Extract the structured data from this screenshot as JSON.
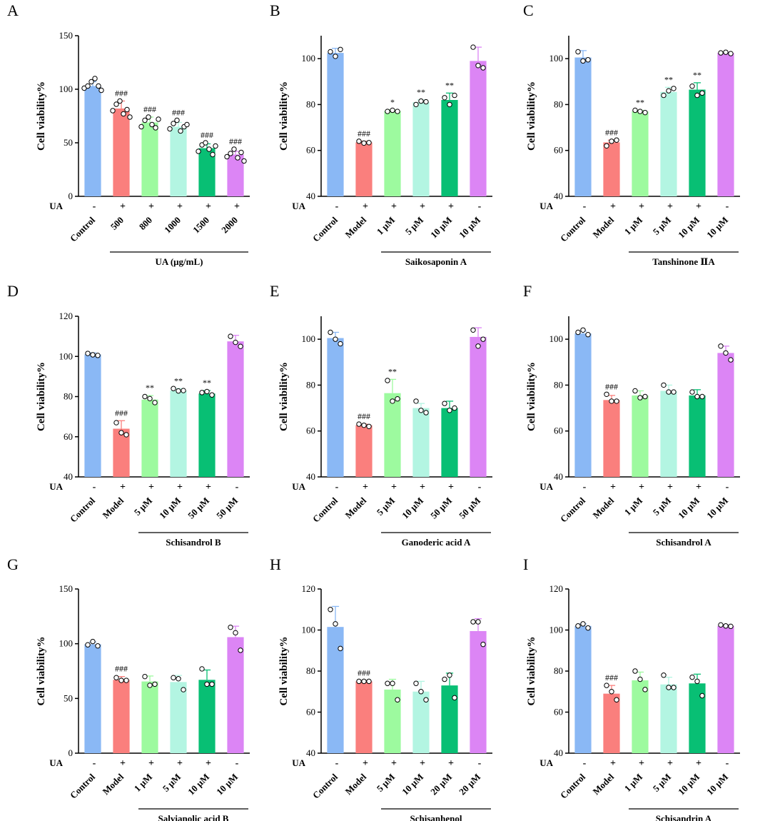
{
  "figure": {
    "treatment_label": "UA",
    "ylabel": "Cell viability%"
  },
  "chart_data": [
    {
      "panel": "A",
      "type": "bar",
      "ylabel": "Cell viability%",
      "ylim": [
        0,
        150
      ],
      "yticks": [
        0,
        50,
        100,
        150
      ],
      "categories": [
        "Control",
        "500",
        "800",
        "1000",
        "1500",
        "2000"
      ],
      "ua": [
        "-",
        "+",
        "+",
        "+",
        "+",
        "+"
      ],
      "values": [
        103,
        82,
        69,
        65,
        45,
        39
      ],
      "errors": [
        4,
        7,
        5,
        4,
        4,
        3
      ],
      "points": [
        [
          101,
          103,
          107,
          110,
          103,
          99
        ],
        [
          80,
          86,
          89,
          77,
          81,
          74
        ],
        [
          65,
          71,
          74,
          67,
          64,
          72
        ],
        [
          63,
          68,
          71,
          61,
          65,
          67
        ],
        [
          42,
          48,
          50,
          44,
          39,
          47
        ],
        [
          37,
          40,
          44,
          36,
          41,
          33
        ]
      ],
      "significance": [
        "",
        "###",
        "###",
        "###",
        "###",
        "###"
      ],
      "colors": [
        "#8ab8f5",
        "#fa7f7d",
        "#9dfa9f",
        "#b3f5e2",
        "#08bf74",
        "#dc85f5"
      ],
      "group_label": "UA (μg/mL)",
      "group_start": 1
    },
    {
      "panel": "B",
      "type": "bar",
      "ylabel": "Cell viability%",
      "ylim": [
        40,
        110
      ],
      "yticks": [
        40,
        60,
        80,
        100
      ],
      "categories": [
        "Control",
        "Model",
        "1 μM",
        "5 μM",
        "10 μM",
        "10 μM"
      ],
      "ua": [
        "-",
        "+",
        "+",
        "+",
        "+",
        "-"
      ],
      "values": [
        102.5,
        63.5,
        77.2,
        81.0,
        82.0,
        99.0
      ],
      "errors": [
        2,
        0.5,
        0.5,
        1,
        3,
        6
      ],
      "points": [
        [
          103,
          101,
          104
        ],
        [
          64,
          63.2,
          63.4
        ],
        [
          77,
          77.5,
          77
        ],
        [
          80,
          81.5,
          81.2
        ],
        [
          83,
          80,
          84
        ],
        [
          105,
          97,
          96
        ]
      ],
      "significance": [
        "",
        "###",
        "*",
        "**",
        "**",
        ""
      ],
      "colors": [
        "#8ab8f5",
        "#fa7f7d",
        "#9dfa9f",
        "#b3f5e2",
        "#08bf74",
        "#dc85f5"
      ],
      "group_label": "Saikosaponin A",
      "group_start": 2
    },
    {
      "panel": "C",
      "type": "bar",
      "ylabel": "Cell viability%",
      "ylim": [
        40,
        110
      ],
      "yticks": [
        40,
        60,
        80,
        100
      ],
      "categories": [
        "Control",
        "Model",
        "1 μM",
        "5 μM",
        "10 μM",
        "10 μM"
      ],
      "ua": [
        "-",
        "+",
        "+",
        "+",
        "+",
        "-"
      ],
      "values": [
        100.5,
        63.5,
        77.0,
        85.5,
        86.5,
        102.5
      ],
      "errors": [
        3,
        1,
        0.5,
        2,
        3,
        0.3
      ],
      "points": [
        [
          103,
          99,
          99.5
        ],
        [
          62,
          64,
          64.5
        ],
        [
          77.5,
          77,
          76.5
        ],
        [
          84,
          86,
          87
        ],
        [
          88,
          84,
          85
        ],
        [
          102.5,
          102.8,
          102.2
        ]
      ],
      "significance": [
        "",
        "###",
        "**",
        "**",
        "**",
        ""
      ],
      "colors": [
        "#8ab8f5",
        "#fa7f7d",
        "#9dfa9f",
        "#b3f5e2",
        "#08bf74",
        "#dc85f5"
      ],
      "group_label": "Tanshinone ⅡA",
      "group_start": 2
    },
    {
      "panel": "D",
      "type": "bar",
      "ylabel": "Cell viability%",
      "ylim": [
        40,
        120
      ],
      "yticks": [
        40,
        60,
        80,
        100,
        120
      ],
      "categories": [
        "Control",
        "Model",
        "5 μM",
        "10 μM",
        "50 μM",
        "50 μM"
      ],
      "ua": [
        "-",
        "+",
        "+",
        "+",
        "+",
        "-"
      ],
      "values": [
        101,
        64,
        78.5,
        83,
        81.5,
        107.5
      ],
      "errors": [
        0.8,
        4,
        2,
        1,
        1.5,
        3
      ],
      "points": [
        [
          101.5,
          100.8,
          100.5
        ],
        [
          67,
          62,
          61
        ],
        [
          80,
          79,
          77
        ],
        [
          84,
          82.8,
          83
        ],
        [
          82,
          82.5,
          80.8
        ],
        [
          110,
          107,
          105
        ]
      ],
      "significance": [
        "",
        "###",
        "**",
        "**",
        "**",
        ""
      ],
      "colors": [
        "#8ab8f5",
        "#fa7f7d",
        "#9dfa9f",
        "#b3f5e2",
        "#08bf74",
        "#dc85f5"
      ],
      "group_label": "Schisandrol B",
      "group_start": 2
    },
    {
      "panel": "E",
      "type": "bar",
      "ylabel": "Cell viability%",
      "ylim": [
        40,
        110
      ],
      "yticks": [
        40,
        60,
        80,
        100
      ],
      "categories": [
        "Control",
        "Model",
        "5 μM",
        "10 μM",
        "50 μM",
        "50 μM"
      ],
      "ua": [
        "-",
        "+",
        "+",
        "+",
        "+",
        "-"
      ],
      "values": [
        100.5,
        62.5,
        76.5,
        70,
        70,
        101
      ],
      "errors": [
        2.5,
        0.5,
        6,
        2,
        3,
        4
      ],
      "points": [
        [
          103,
          100,
          98
        ],
        [
          63,
          62.5,
          62
        ],
        [
          82,
          73,
          74
        ],
        [
          73,
          69,
          68
        ],
        [
          72,
          69,
          70
        ],
        [
          104,
          97,
          100
        ]
      ],
      "significance": [
        "",
        "###",
        "**",
        "",
        "",
        ""
      ],
      "colors": [
        "#8ab8f5",
        "#fa7f7d",
        "#9dfa9f",
        "#b3f5e2",
        "#08bf74",
        "#dc85f5"
      ],
      "group_label": "Ganoderic acid A",
      "group_start": 2
    },
    {
      "panel": "F",
      "type": "bar",
      "ylabel": "Cell viability%",
      "ylim": [
        40,
        110
      ],
      "yticks": [
        40,
        60,
        80,
        100
      ],
      "categories": [
        "Control",
        "Model",
        "1 μM",
        "5 μM",
        "10 μM",
        "10 μM"
      ],
      "ua": [
        "-",
        "+",
        "+",
        "+",
        "+",
        "-"
      ],
      "values": [
        102.5,
        73.5,
        75.5,
        77.5,
        75.5,
        94
      ],
      "errors": [
        1,
        2,
        2,
        2.5,
        2.5,
        3
      ],
      "points": [
        [
          103,
          104,
          102
        ],
        [
          76,
          73,
          73
        ],
        [
          77.5,
          74.5,
          75
        ],
        [
          80,
          77,
          77
        ],
        [
          77,
          75,
          75
        ],
        [
          97,
          94,
          91
        ]
      ],
      "significance": [
        "",
        "###",
        "",
        "",
        "",
        ""
      ],
      "colors": [
        "#8ab8f5",
        "#fa7f7d",
        "#9dfa9f",
        "#b3f5e2",
        "#08bf74",
        "#dc85f5"
      ],
      "group_label": "Schisandrol A",
      "group_start": 2
    },
    {
      "panel": "G",
      "type": "bar",
      "ylabel": "Cell viability%",
      "ylim": [
        0,
        150
      ],
      "yticks": [
        0,
        50,
        100,
        150
      ],
      "categories": [
        "Control",
        "Model",
        "1 μM",
        "5 μM",
        "10 μM",
        "10 μM"
      ],
      "ua": [
        "-",
        "+",
        "+",
        "+",
        "+",
        "-"
      ],
      "values": [
        99.5,
        67,
        65.5,
        65,
        67,
        106
      ],
      "errors": [
        2,
        3,
        5,
        6,
        9,
        10
      ],
      "points": [
        [
          99,
          102,
          98
        ],
        [
          69,
          66.5,
          66.5
        ],
        [
          70,
          62,
          63
        ],
        [
          69,
          68,
          58
        ],
        [
          77,
          63,
          63
        ],
        [
          115,
          110,
          94
        ]
      ],
      "significance": [
        "",
        "###",
        "",
        "",
        "",
        ""
      ],
      "colors": [
        "#8ab8f5",
        "#fa7f7d",
        "#9dfa9f",
        "#b3f5e2",
        "#08bf74",
        "#dc85f5"
      ],
      "group_label": "Salvianolic acid B",
      "group_start": 2
    },
    {
      "panel": "H",
      "type": "bar",
      "ylabel": "Cell viability%",
      "ylim": [
        40,
        120
      ],
      "yticks": [
        40,
        60,
        80,
        100,
        120
      ],
      "categories": [
        "Control",
        "Model",
        "5 μM",
        "10 μM",
        "20 μM",
        "20 μM"
      ],
      "ua": [
        "-",
        "+",
        "+",
        "+",
        "+",
        "-"
      ],
      "values": [
        101.5,
        75,
        71,
        70,
        73,
        99.5
      ],
      "errors": [
        10,
        0.3,
        5,
        5,
        6,
        6
      ],
      "points": [
        [
          110,
          103,
          91
        ],
        [
          75,
          75,
          75
        ],
        [
          74,
          74,
          66
        ],
        [
          74,
          70,
          66
        ],
        [
          76,
          78,
          67
        ],
        [
          104,
          104,
          93
        ]
      ],
      "significance": [
        "",
        "###",
        "",
        "",
        "",
        ""
      ],
      "colors": [
        "#8ab8f5",
        "#fa7f7d",
        "#9dfa9f",
        "#b3f5e2",
        "#08bf74",
        "#dc85f5"
      ],
      "group_label": "Schisanhenol",
      "group_start": 2
    },
    {
      "panel": "I",
      "type": "bar",
      "ylabel": "Cell viability%",
      "ylim": [
        40,
        120
      ],
      "yticks": [
        40,
        60,
        80,
        100,
        120
      ],
      "categories": [
        "Control",
        "Model",
        "1 μM",
        "5 μM",
        "10 μM",
        "10 μM"
      ],
      "ua": [
        "-",
        "+",
        "+",
        "+",
        "+",
        "-"
      ],
      "values": [
        102,
        69,
        75.5,
        73.5,
        74,
        102
      ],
      "errors": [
        1,
        4,
        4,
        3.5,
        4.5,
        0.5
      ],
      "points": [
        [
          102,
          103,
          101
        ],
        [
          73,
          70,
          66
        ],
        [
          80,
          76,
          71
        ],
        [
          78,
          72,
          72
        ],
        [
          77,
          75,
          68
        ],
        [
          102.5,
          102,
          101.8
        ]
      ],
      "significance": [
        "",
        "###",
        "",
        "",
        "",
        ""
      ],
      "colors": [
        "#8ab8f5",
        "#fa7f7d",
        "#9dfa9f",
        "#b3f5e2",
        "#08bf74",
        "#dc85f5"
      ],
      "group_label": "Schisandrin A",
      "group_start": 2
    }
  ]
}
